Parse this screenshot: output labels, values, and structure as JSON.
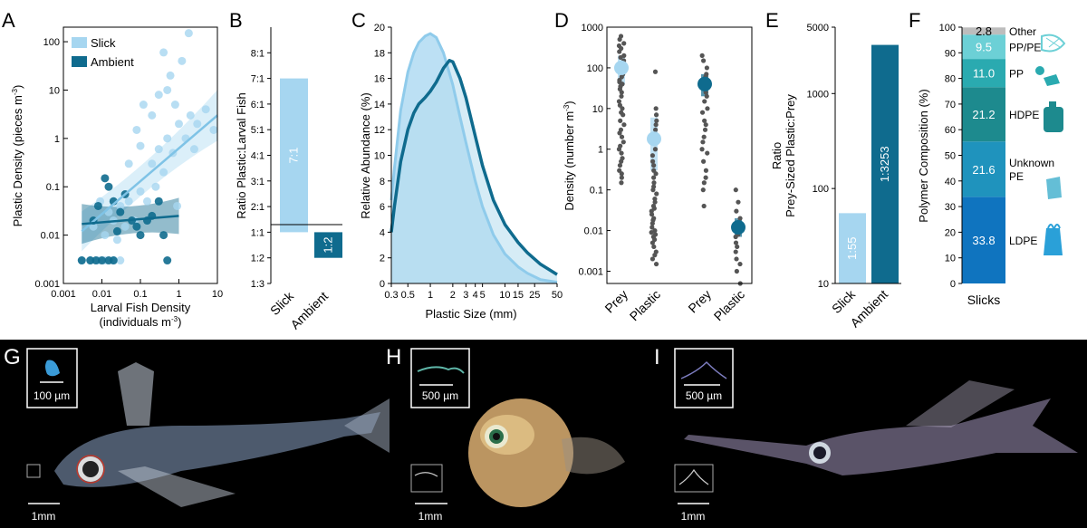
{
  "colors": {
    "slick": "#a6d6f0",
    "ambient": "#0f6b8e",
    "dots": "#555555",
    "black": "#000000",
    "polymer": [
      "#0f74bf",
      "#1f93bd",
      "#1d8a8e",
      "#2aaab0",
      "#6cd0d6",
      "#bdbdbd"
    ]
  },
  "panel_letters": {
    "A": "A",
    "B": "B",
    "C": "C",
    "D": "D",
    "E": "E",
    "F": "F",
    "G": "G",
    "H": "H",
    "I": "I"
  },
  "chart_data": [
    {
      "panel": "A",
      "type": "scatter",
      "xlabel_line1": "Larval Fish Density",
      "xlabel_line2": "(individuals m",
      "ylabel": "Plastic Density (pieces m",
      "unit_sup": "-3",
      "unit_close": ")",
      "xscale": "log",
      "yscale": "log",
      "xlim": [
        0.001,
        10
      ],
      "ylim": [
        0.001,
        200
      ],
      "xticks": [
        "0.001",
        "0.01",
        "0.1",
        "1",
        "10"
      ],
      "yticks": [
        "0.001",
        "0.01",
        "0.1",
        "1",
        "10",
        "100"
      ],
      "legend": [
        "Slick",
        "Ambient"
      ],
      "series": [
        {
          "name": "Slick",
          "points": [
            [
              0.003,
              0.003
            ],
            [
              0.005,
              0.003
            ],
            [
              0.008,
              0.003
            ],
            [
              0.012,
              0.003
            ],
            [
              0.02,
              0.003
            ],
            [
              0.03,
              0.003
            ],
            [
              0.012,
              0.01
            ],
            [
              0.02,
              0.02
            ],
            [
              0.03,
              0.04
            ],
            [
              0.05,
              0.05
            ],
            [
              0.07,
              0.02
            ],
            [
              0.1,
              0.08
            ],
            [
              0.15,
              0.05
            ],
            [
              0.2,
              0.3
            ],
            [
              0.25,
              0.1
            ],
            [
              0.3,
              0.6
            ],
            [
              0.4,
              0.2
            ],
            [
              0.5,
              1.0
            ],
            [
              0.7,
              0.5
            ],
            [
              1.0,
              2.0
            ],
            [
              1.5,
              1.0
            ],
            [
              2.0,
              3.0
            ],
            [
              3.0,
              2.0
            ],
            [
              5.0,
              4.0
            ],
            [
              8.0,
              1.5
            ],
            [
              0.05,
              0.3
            ],
            [
              0.08,
              1.5
            ],
            [
              0.12,
              5.0
            ],
            [
              0.2,
              3.0
            ],
            [
              0.3,
              8.0
            ],
            [
              0.5,
              10.0
            ],
            [
              0.8,
              5.0
            ],
            [
              1.2,
              40.0
            ],
            [
              1.8,
              150.0
            ],
            [
              0.4,
              60.0
            ],
            [
              0.6,
              20.0
            ],
            [
              0.1,
              0.7
            ],
            [
              0.015,
              0.03
            ],
            [
              0.025,
              0.008
            ],
            [
              0.04,
              0.015
            ],
            [
              2.5,
              0.6
            ],
            [
              0.9,
              0.04
            ],
            [
              0.006,
              0.015
            ],
            [
              0.009,
              0.05
            ]
          ]
        },
        {
          "name": "Ambient",
          "points": [
            [
              0.003,
              0.003
            ],
            [
              0.005,
              0.003
            ],
            [
              0.007,
              0.003
            ],
            [
              0.01,
              0.003
            ],
            [
              0.015,
              0.003
            ],
            [
              0.02,
              0.003
            ],
            [
              0.5,
              0.003
            ],
            [
              0.012,
              0.15
            ],
            [
              0.015,
              0.1
            ],
            [
              0.02,
              0.05
            ],
            [
              0.03,
              0.03
            ],
            [
              0.04,
              0.07
            ],
            [
              0.06,
              0.02
            ],
            [
              0.08,
              0.015
            ],
            [
              0.1,
              0.01
            ],
            [
              0.15,
              0.02
            ],
            [
              0.2,
              0.025
            ],
            [
              0.3,
              0.05
            ],
            [
              0.4,
              0.01
            ],
            [
              0.006,
              0.02
            ],
            [
              0.008,
              0.04
            ],
            [
              0.025,
              0.012
            ]
          ]
        }
      ],
      "fits": [
        {
          "name": "Slick",
          "x": [
            0.003,
            10
          ],
          "y": [
            0.012,
            3
          ]
        },
        {
          "name": "Ambient",
          "x": [
            0.003,
            1
          ],
          "y": [
            0.017,
            0.025
          ]
        }
      ]
    },
    {
      "panel": "B",
      "type": "bar",
      "ylabel": "Ratio Plastic:Larval Fish",
      "yticks": [
        "8:1",
        "7:1",
        "6:1",
        "5:1",
        "4:1",
        "3:1",
        "2:1",
        "1:1",
        "1:2",
        "1:3"
      ],
      "ylim": [
        -2,
        7
      ],
      "categories": [
        "Slick",
        "Ambient"
      ],
      "values": [
        6,
        -1
      ],
      "bar_labels": [
        "7:1",
        "1:2"
      ]
    },
    {
      "panel": "C",
      "type": "area",
      "xlabel": "Plastic Size (mm)",
      "ylabel": "Relative Abundance (%)",
      "xscale": "log",
      "xlim": [
        0.3,
        50
      ],
      "ylim": [
        0,
        20
      ],
      "xticks": [
        "0.3",
        "0.5",
        "1",
        "2",
        "3",
        "4",
        "5",
        "10",
        "15",
        "25",
        "50"
      ],
      "xtick_values": [
        0.3,
        0.5,
        1,
        2,
        3,
        4,
        5,
        10,
        15,
        25,
        50
      ],
      "yticks": [
        "0",
        "2",
        "4",
        "6",
        "8",
        "10",
        "12",
        "14",
        "16",
        "18",
        "20"
      ],
      "series": [
        {
          "name": "Slick",
          "x": [
            0.3,
            0.33,
            0.4,
            0.5,
            0.6,
            0.7,
            0.85,
            1.0,
            1.2,
            1.5,
            2.0,
            2.5,
            3,
            4,
            5,
            7,
            10,
            15,
            20,
            30,
            50
          ],
          "y": [
            6.5,
            9,
            13.5,
            16.5,
            18,
            18.8,
            19.3,
            19.5,
            19.2,
            18,
            15.5,
            13,
            11,
            8,
            6,
            3.8,
            2.3,
            1.3,
            0.8,
            0.3,
            0.1
          ]
        },
        {
          "name": "Ambient",
          "x": [
            0.3,
            0.33,
            0.4,
            0.5,
            0.6,
            0.7,
            0.85,
            1.0,
            1.2,
            1.5,
            1.8,
            2.0,
            2.5,
            3,
            4,
            5,
            7,
            10,
            15,
            20,
            30,
            50
          ],
          "y": [
            4,
            6,
            9.5,
            12,
            13.3,
            14,
            14.5,
            15,
            15.7,
            16.8,
            17.4,
            17.3,
            16,
            14.5,
            11.5,
            9.2,
            6.5,
            4.6,
            3.2,
            2.4,
            1.5,
            0.7
          ]
        }
      ]
    },
    {
      "panel": "D",
      "type": "scatter",
      "ylabel": "Density (number m",
      "unit_sup": "-3",
      "unit_close": ")",
      "yscale": "log",
      "ylim": [
        0.0005,
        1000
      ],
      "yticks": [
        "1000",
        "100",
        "10",
        "1",
        "0.1",
        "0.01",
        "0.001"
      ],
      "categories": [
        "Prey",
        "Plastic",
        "Prey",
        "Plastic"
      ],
      "groups": [
        {
          "name": "Slick Prey",
          "mean": 100,
          "range": [
            40,
            200
          ],
          "values": [
            0.15,
            0.2,
            0.3,
            0.4,
            0.5,
            0.8,
            1,
            1.5,
            2,
            3,
            5,
            7,
            10,
            15,
            20,
            30,
            40,
            50,
            60,
            80,
            100,
            120,
            150,
            200,
            250,
            300,
            400,
            500,
            600,
            0.25,
            0.6,
            1.2,
            2.5,
            4,
            8,
            12,
            25,
            35,
            45,
            70,
            90,
            180,
            350
          ]
        },
        {
          "name": "Slick Plastic",
          "mean": 1.8,
          "range": [
            0.3,
            6
          ],
          "values": [
            0.0015,
            0.002,
            0.003,
            0.004,
            0.005,
            0.006,
            0.007,
            0.008,
            0.01,
            0.012,
            0.015,
            0.02,
            0.025,
            0.03,
            0.04,
            0.05,
            0.06,
            0.08,
            0.1,
            0.12,
            0.15,
            0.2,
            0.25,
            0.3,
            0.4,
            0.5,
            0.7,
            1,
            1.5,
            2,
            3,
            4,
            5,
            7,
            10,
            80,
            0.0025,
            0.035,
            0.009,
            0.018
          ]
        },
        {
          "name": "Ambient Prey",
          "mean": 40,
          "range": [
            20,
            70
          ],
          "values": [
            0.04,
            0.1,
            0.15,
            0.2,
            0.3,
            0.5,
            0.8,
            1,
            2,
            3,
            5,
            8,
            10,
            15,
            20,
            30,
            40,
            50,
            70,
            100,
            150,
            200,
            1.5,
            4,
            25,
            60
          ]
        },
        {
          "name": "Ambient Plastic",
          "mean": 0.012,
          "range": [
            0.007,
            0.02
          ],
          "values": [
            0.0005,
            0.001,
            0.0015,
            0.002,
            0.003,
            0.005,
            0.007,
            0.01,
            0.015,
            0.02,
            0.03,
            0.05,
            0.1,
            0.004,
            0.008
          ]
        }
      ]
    },
    {
      "panel": "E",
      "type": "bar",
      "ylabel_line1": "Ratio",
      "ylabel_line2": "Prey-Sized Plastic:Prey",
      "yscale": "log",
      "ylim": [
        10,
        5000
      ],
      "yticks": [
        "5000",
        "1000",
        "100",
        "10"
      ],
      "categories": [
        "Slick",
        "Ambient"
      ],
      "values": [
        55,
        3253
      ],
      "bar_labels": [
        "1:55",
        "1:3253"
      ]
    },
    {
      "panel": "F",
      "type": "bar",
      "ylabel": "Polymer Composition (%)",
      "ylim": [
        0,
        100
      ],
      "yticks": [
        "0",
        "10",
        "20",
        "30",
        "40",
        "50",
        "60",
        "70",
        "80",
        "90",
        "100"
      ],
      "categories": [
        "Slicks"
      ],
      "segments": [
        {
          "name": "LDPE",
          "value": 33.8
        },
        {
          "name": "Unknown PE",
          "name_line1": "Unknown",
          "name_line2": "PE",
          "value": 21.6
        },
        {
          "name": "HDPE",
          "value": 21.2
        },
        {
          "name": "PP",
          "value": 11.0
        },
        {
          "name": "PP/PE",
          "value": 9.5
        },
        {
          "name": "Other",
          "value": 2.8
        }
      ],
      "segment_labels": [
        "33.8",
        "21.6",
        "21.2",
        "11.0",
        "9.5",
        "2.8"
      ]
    }
  ],
  "photos": [
    {
      "panel": "G",
      "inset_scale": "100 µm",
      "scale": "1mm"
    },
    {
      "panel": "H",
      "inset_scale": "500 µm",
      "scale": "1mm"
    },
    {
      "panel": "I",
      "inset_scale": "500 µm",
      "scale": "1mm"
    }
  ]
}
